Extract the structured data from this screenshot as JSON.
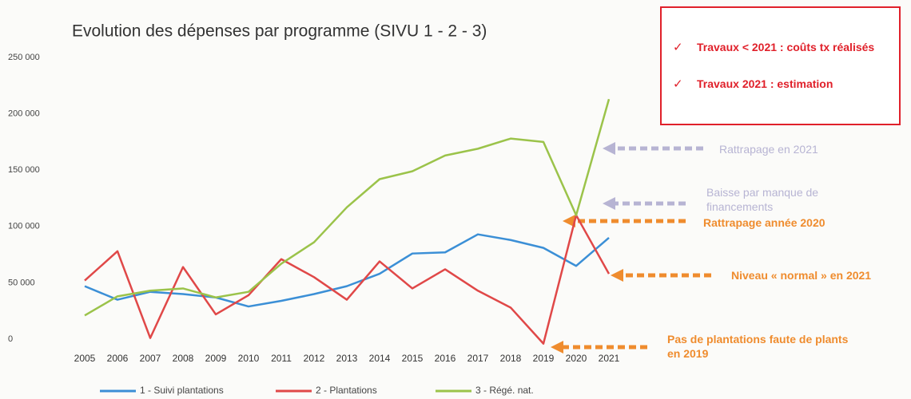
{
  "chart_data": {
    "type": "line",
    "title": "Evolution des dépenses par programme (SIVU 1 - 2 - 3)",
    "categories": [
      "2005",
      "2006",
      "2007",
      "2008",
      "2009",
      "2010",
      "2011",
      "2012",
      "2013",
      "2014",
      "2015",
      "2016",
      "2017",
      "2018",
      "2019",
      "2020",
      "2021"
    ],
    "series": [
      {
        "name": "1 - Suivi plantations",
        "color": "#3b8fd6",
        "values": [
          47000,
          35000,
          42000,
          40000,
          37000,
          29000,
          34000,
          40000,
          47000,
          58000,
          76000,
          77000,
          93000,
          88000,
          81000,
          65000,
          90000
        ]
      },
      {
        "name": "2 - Plantations",
        "color": "#e04848",
        "values": [
          52000,
          78000,
          1000,
          64000,
          22000,
          39000,
          71000,
          55000,
          35000,
          69000,
          45000,
          62000,
          43000,
          28000,
          -4000,
          110000,
          58000
        ]
      },
      {
        "name": "3 - Régé. nat.",
        "color": "#9bc34a",
        "values": [
          21000,
          38000,
          43000,
          45000,
          37000,
          42000,
          67000,
          86000,
          117000,
          142000,
          149000,
          163000,
          169000,
          178000,
          175000,
          110000,
          213000
        ]
      }
    ],
    "ylim": [
      0,
      250000
    ],
    "yticks": [
      {
        "value": 0,
        "label": "0"
      },
      {
        "value": 50000,
        "label": "50 000"
      },
      {
        "value": 100000,
        "label": "100 000"
      },
      {
        "value": 150000,
        "label": "150 000"
      },
      {
        "value": 200000,
        "label": "200 000"
      },
      {
        "value": 250000,
        "label": "250 000"
      }
    ],
    "grid": false,
    "legend": "bottom",
    "box_notes": [
      "Travaux < 2021 : coûts tx réalisés",
      "Travaux 2021 : estimation"
    ],
    "annotations": [
      "Rattrapage en 2021",
      "Baisse par manque de financements",
      "Rattrapage année 2020",
      "Niveau « normal » en 2021",
      "Pas de plantations faute de plants en 2019"
    ]
  }
}
